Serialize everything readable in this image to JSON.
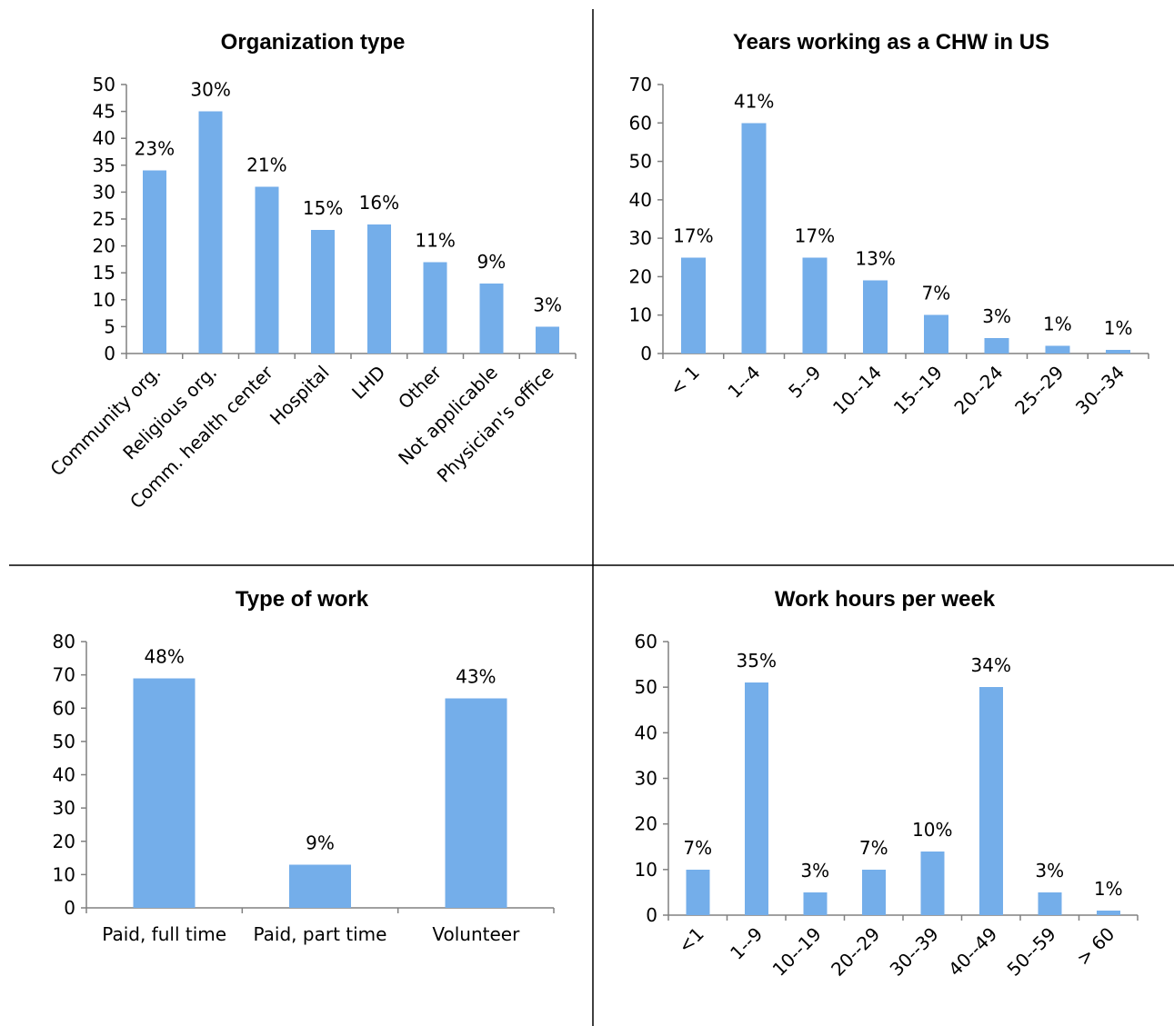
{
  "bar_color": "#74aeea",
  "chart_data": [
    {
      "type": "bar",
      "title": "Organization type",
      "categories": [
        "Community org.",
        "Religious org.",
        "Comm. health center",
        "Hospital",
        "LHD",
        "Other",
        "Not applicable",
        "Physician's office"
      ],
      "values": [
        34,
        45,
        31,
        23,
        24,
        17,
        13,
        5
      ],
      "data_labels": [
        "23%",
        "30%",
        "21%",
        "15%",
        "16%",
        "11%",
        "9%",
        "3%"
      ],
      "ylim": [
        0,
        50
      ],
      "yticks": [
        0,
        5,
        10,
        15,
        20,
        25,
        30,
        35,
        40,
        45,
        50
      ],
      "legend": "none",
      "grid": false
    },
    {
      "type": "bar",
      "title": "Years working as a CHW in US",
      "categories": [
        "< 1",
        "1--4",
        "5--9",
        "10--14",
        "15--19",
        "20--24",
        "25--29",
        "30--34"
      ],
      "values": [
        25,
        60,
        25,
        19,
        10,
        4,
        2,
        1
      ],
      "data_labels": [
        "17%",
        "41%",
        "17%",
        "13%",
        "7%",
        "3%",
        "1%",
        "1%"
      ],
      "ylim": [
        0,
        70
      ],
      "yticks": [
        0,
        10,
        20,
        30,
        40,
        50,
        60,
        70
      ],
      "legend": "none",
      "grid": false
    },
    {
      "type": "bar",
      "title": "Type of work",
      "categories": [
        "Paid, full time",
        "Paid, part time",
        "Volunteer"
      ],
      "values": [
        69,
        13,
        63
      ],
      "data_labels": [
        "48%",
        "9%",
        "43%"
      ],
      "ylim": [
        0,
        80
      ],
      "yticks": [
        0,
        10,
        20,
        30,
        40,
        50,
        60,
        70,
        80
      ],
      "legend": "none",
      "grid": false
    },
    {
      "type": "bar",
      "title": "Work hours per week",
      "categories": [
        "<1",
        "1--9",
        "10--19",
        "20--29",
        "30--39",
        "40--49",
        "50--59",
        "> 60"
      ],
      "values": [
        10,
        51,
        5,
        10,
        14,
        50,
        5,
        1
      ],
      "data_labels": [
        "7%",
        "35%",
        "3%",
        "7%",
        "10%",
        "34%",
        "3%",
        "1%"
      ],
      "ylim": [
        0,
        60
      ],
      "yticks": [
        0,
        10,
        20,
        30,
        40,
        50,
        60
      ],
      "legend": "none",
      "grid": false
    }
  ]
}
